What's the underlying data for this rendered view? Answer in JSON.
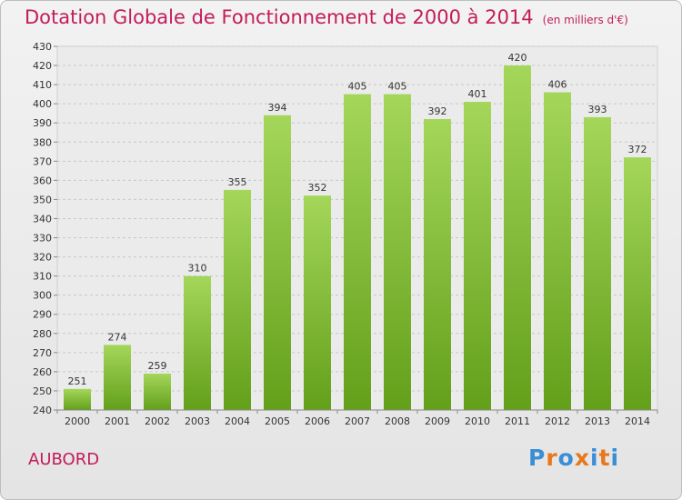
{
  "header": {
    "title": "Dotation Globale de Fonctionnement de 2000 à 2014",
    "unit": "(en milliers d'€)"
  },
  "footer": {
    "commune": "AUBORD",
    "logo_text": "Proxiti"
  },
  "colors": {
    "title": "#c31c5a",
    "bar_top": "#a4d65a",
    "bar_bottom": "#63a01a",
    "logo": [
      "#3b8ed6",
      "#e8781c",
      "#3b8ed6",
      "#e8781c",
      "#3b8ed6",
      "#e8781c",
      "#3b8ed6"
    ]
  },
  "chart_data": {
    "type": "bar",
    "categories": [
      "2000",
      "2001",
      "2002",
      "2003",
      "2004",
      "2005",
      "2006",
      "2007",
      "2008",
      "2009",
      "2010",
      "2011",
      "2012",
      "2013",
      "2014"
    ],
    "values": [
      251,
      274,
      259,
      310,
      355,
      394,
      352,
      405,
      405,
      392,
      401,
      420,
      406,
      393,
      372
    ],
    "ylim": [
      240,
      430
    ],
    "ytick_step": 10,
    "grid": true
  }
}
